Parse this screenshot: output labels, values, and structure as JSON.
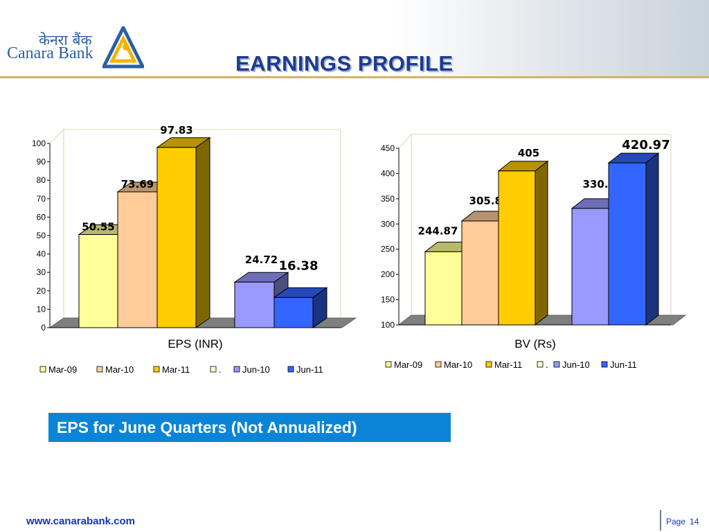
{
  "header": {
    "title": "EARNINGS PROFILE",
    "logo_hindi": "केनरा बैंक",
    "logo_english": "Canara Bank",
    "logo_icon": "canara-bank-logo-icon",
    "accent_color": "#1f3b8f"
  },
  "chart_data": [
    {
      "type": "bar",
      "xlabel": "EPS (INR)",
      "ylim": [
        0,
        100
      ],
      "yticks": [
        0,
        10,
        20,
        30,
        40,
        50,
        60,
        70,
        80,
        90,
        100
      ],
      "legend_position": "bottom",
      "grid": false,
      "series": [
        {
          "name": "Mar-09",
          "value": 50.55,
          "label": "50.55",
          "color": "#ffff99"
        },
        {
          "name": "Mar-10",
          "value": 73.69,
          "label": "73.69",
          "color": "#ffcc99"
        },
        {
          "name": "Mar-11",
          "value": 97.83,
          "label": "97.83",
          "color": "#ffcc00"
        },
        {
          "name": ".",
          "value": null,
          "label": "",
          "color": "#ffffcc"
        },
        {
          "name": "Jun-10",
          "value": 24.72,
          "label": "24.72",
          "color": "#9999ff"
        },
        {
          "name": "Jun-11",
          "value": 16.38,
          "label": "16.38",
          "color": "#3366ff"
        }
      ]
    },
    {
      "type": "bar",
      "xlabel": "BV (Rs)",
      "ylim": [
        100,
        450
      ],
      "yticks": [
        100,
        150,
        200,
        250,
        300,
        350,
        400,
        450
      ],
      "legend_position": "bottom",
      "grid": false,
      "series": [
        {
          "name": "Mar-09",
          "value": 244.87,
          "label": "244.87",
          "color": "#ffff99"
        },
        {
          "name": "Mar-10",
          "value": 305.83,
          "label": "305.83",
          "color": "#ffcc99"
        },
        {
          "name": "Mar-11",
          "value": 405,
          "label": "405",
          "color": "#ffcc00"
        },
        {
          "name": ".",
          "value": null,
          "label": "",
          "color": "#ffffcc"
        },
        {
          "name": "Jun-10",
          "value": 330.83,
          "label": "330.83",
          "color": "#9999ff"
        },
        {
          "name": "Jun-11",
          "value": 420.97,
          "label": "420.97",
          "color": "#3366ff"
        }
      ]
    }
  ],
  "banner": {
    "text": "EPS for June Quarters (Not Annualized)",
    "color": "#0a84d6"
  },
  "footer": {
    "url": "www.canarabank.com",
    "page_label": "Page",
    "page_number": "14"
  }
}
